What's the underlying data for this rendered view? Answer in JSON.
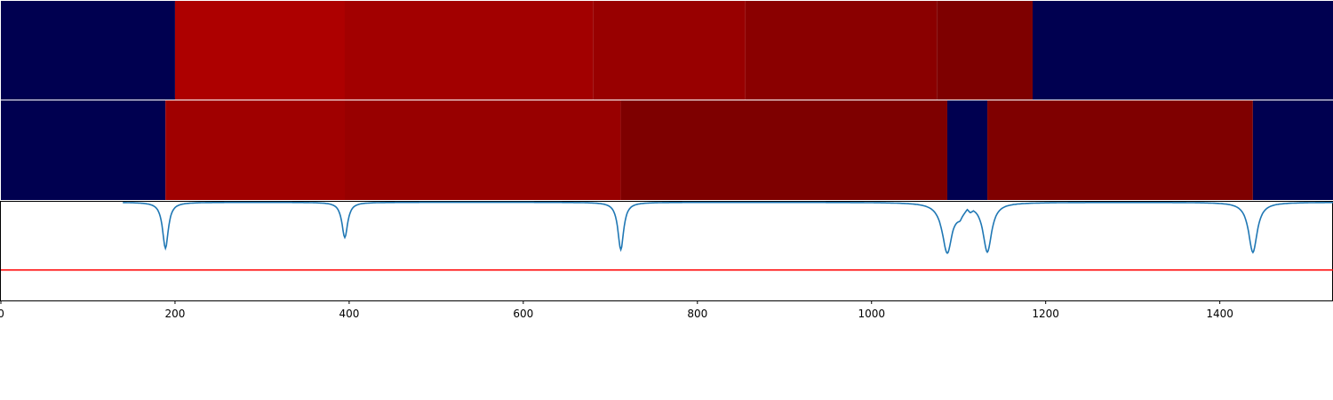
{
  "chart_data": [
    {
      "type": "heatmap",
      "title": "",
      "xlim": [
        0,
        1530
      ],
      "segments": [
        {
          "start": 0,
          "end": 200,
          "color": "#000050"
        },
        {
          "start": 200,
          "end": 395,
          "color": "#ad0000"
        },
        {
          "start": 395,
          "end": 680,
          "color": "#a20000"
        },
        {
          "start": 680,
          "end": 855,
          "color": "#980000"
        },
        {
          "start": 855,
          "end": 1075,
          "color": "#8a0000"
        },
        {
          "start": 1075,
          "end": 1185,
          "color": "#7e0000"
        },
        {
          "start": 1185,
          "end": 1530,
          "color": "#000050"
        }
      ]
    },
    {
      "type": "heatmap",
      "title": "",
      "xlim": [
        0,
        1530
      ],
      "segments": [
        {
          "start": 0,
          "end": 189,
          "color": "#000050"
        },
        {
          "start": 189,
          "end": 395,
          "color": "#a00000"
        },
        {
          "start": 395,
          "end": 712,
          "color": "#980000"
        },
        {
          "start": 712,
          "end": 1087,
          "color": "#7e0000"
        },
        {
          "start": 1087,
          "end": 1133,
          "color": "#000050"
        },
        {
          "start": 1133,
          "end": 1438,
          "color": "#7f0000"
        },
        {
          "start": 1438,
          "end": 1530,
          "color": "#000050"
        }
      ]
    },
    {
      "type": "line",
      "title": "",
      "xlabel": "",
      "ylabel": "",
      "xlim": [
        0,
        1530
      ],
      "ylim": [
        -1.45,
        0.02
      ],
      "xticks": [
        0,
        200,
        400,
        600,
        800,
        1000,
        1200,
        1400
      ],
      "grid": false,
      "baseline": {
        "y": -1,
        "color": "#ff0000"
      },
      "series": [
        {
          "color": "#1f77b4",
          "dips": [
            {
              "x": 189,
              "depth": -0.68,
              "width": 4
            },
            {
              "x": 395,
              "depth": -0.52,
              "width": 4
            },
            {
              "x": 712,
              "depth": -0.7,
              "width": 4
            },
            {
              "x": 1087,
              "depth": -0.74,
              "width": 7
            },
            {
              "x": 1133,
              "depth": -0.72,
              "width": 6
            },
            {
              "x": 1438,
              "depth": -0.74,
              "width": 6
            }
          ],
          "plateaus": [
            {
              "start": 1093,
              "end": 1110,
              "level": -0.2
            },
            {
              "start": 1110,
              "end": 1117,
              "level": -0.08
            }
          ]
        }
      ]
    }
  ]
}
